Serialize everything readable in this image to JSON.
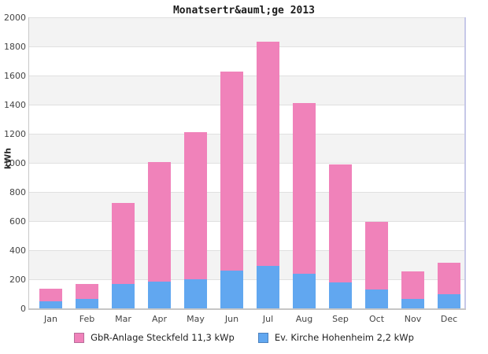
{
  "chart_data": {
    "type": "bar",
    "stacked": true,
    "title": "Monatsertr&auml;ge 2013",
    "ylabel": "kWh",
    "ylim": [
      0,
      2000
    ],
    "yticks": [
      0,
      200,
      400,
      600,
      800,
      1000,
      1200,
      1400,
      1600,
      1800,
      2000
    ],
    "grid": "alternating-bands",
    "legend_position": "bottom-center",
    "categories": [
      "Jan",
      "Feb",
      "Mar",
      "Apr",
      "May",
      "Jun",
      "Jul",
      "Aug",
      "Sep",
      "Oct",
      "Nov",
      "Dec"
    ],
    "series": [
      {
        "name": "GbR-Anlage Steckfeld 11,3 kWp",
        "color": "#f082ba",
        "swatch_border": "#b86e9a",
        "stack_order": "top",
        "values": [
          85,
          105,
          560,
          820,
          1010,
          1365,
          1545,
          1170,
          810,
          465,
          190,
          220
        ]
      },
      {
        "name": "Ev. Kirche Hohenheim 2,2 kWp",
        "color": "#61a7f0",
        "swatch_border": "#4d82be",
        "stack_order": "bottom",
        "values": [
          50,
          65,
          165,
          185,
          200,
          260,
          290,
          240,
          180,
          130,
          65,
          95
        ]
      }
    ],
    "totals": [
      135,
      170,
      725,
      1005,
      1210,
      1625,
      1835,
      1410,
      990,
      595,
      255,
      315
    ],
    "colors": {
      "band_gray": "#f3f3f3",
      "gridline": "#e0e0e0",
      "right_border": "#c6c8e8",
      "axis": "#c6c6c6"
    }
  }
}
